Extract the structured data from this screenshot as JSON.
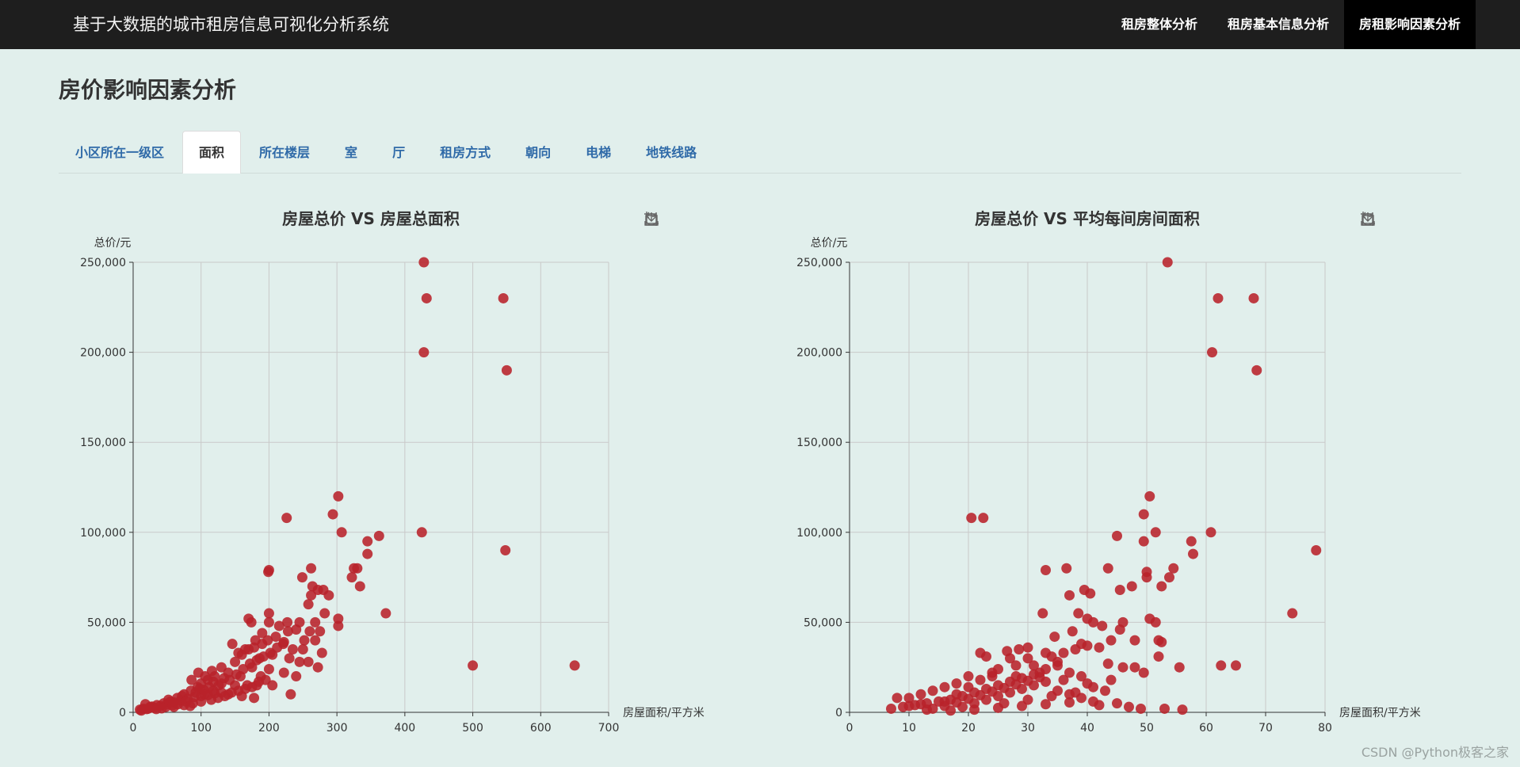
{
  "app": {
    "title": "基于大数据的城市租房信息可视化分析系统"
  },
  "nav": {
    "items": [
      {
        "label": "租房整体分析"
      },
      {
        "label": "租房基本信息分析"
      },
      {
        "label": "房租影响因素分析",
        "active": true
      }
    ]
  },
  "page": {
    "title": "房价影响因素分析"
  },
  "tabs": [
    {
      "label": "小区所在一级区"
    },
    {
      "label": "面积",
      "active": true
    },
    {
      "label": "所在楼层"
    },
    {
      "label": "室"
    },
    {
      "label": "厅"
    },
    {
      "label": "租房方式"
    },
    {
      "label": "朝向"
    },
    {
      "label": "电梯"
    },
    {
      "label": "地铁线路"
    }
  ],
  "toolbox": {
    "icons": [
      "data-zoom-icon",
      "zoom-reset-icon",
      "restore-icon",
      "save-image-icon"
    ]
  },
  "watermark": "CSDN @Python极客之家",
  "colors": {
    "point": "#b8222a",
    "topbar": "#1e1e1e",
    "background": "#e1efec",
    "tab_text": "#2f6aa8"
  },
  "chart_data": [
    {
      "type": "scatter",
      "title": "房屋总价 VS 房屋总面积",
      "xlabel": "房屋面积/平方米",
      "ylabel": "总价/元",
      "xlim": [
        0,
        700
      ],
      "ylim": [
        0,
        250000
      ],
      "xticks": [
        0,
        100,
        200,
        300,
        400,
        500,
        600,
        700
      ],
      "yticks": [
        0,
        50000,
        100000,
        150000,
        200000,
        250000
      ],
      "ytick_labels": [
        "0",
        "50,000",
        "100,000",
        "150,000",
        "200,000",
        "250,000"
      ],
      "grid": true,
      "points": [
        [
          428,
          250000
        ],
        [
          432,
          230000
        ],
        [
          545,
          230000
        ],
        [
          428,
          200000
        ],
        [
          550,
          190000
        ],
        [
          302,
          120000
        ],
        [
          294,
          110000
        ],
        [
          226,
          108000
        ],
        [
          307,
          100000
        ],
        [
          425,
          100000
        ],
        [
          362,
          98000
        ],
        [
          345,
          95000
        ],
        [
          345,
          88000
        ],
        [
          548,
          90000
        ],
        [
          325,
          80000
        ],
        [
          330,
          80000
        ],
        [
          262,
          80000
        ],
        [
          200,
          79000
        ],
        [
          199,
          78000
        ],
        [
          322,
          75000
        ],
        [
          249,
          75000
        ],
        [
          334,
          70000
        ],
        [
          264,
          70000
        ],
        [
          272,
          68000
        ],
        [
          280,
          68000
        ],
        [
          288,
          65000
        ],
        [
          262,
          65000
        ],
        [
          258,
          60000
        ],
        [
          372,
          55000
        ],
        [
          282,
          55000
        ],
        [
          200,
          55000
        ],
        [
          302,
          52000
        ],
        [
          170,
          52000
        ],
        [
          174,
          50000
        ],
        [
          200,
          50000
        ],
        [
          227,
          50000
        ],
        [
          245,
          50000
        ],
        [
          268,
          50000
        ],
        [
          302,
          48000
        ],
        [
          215,
          48000
        ],
        [
          240,
          46000
        ],
        [
          260,
          45000
        ],
        [
          275,
          45000
        ],
        [
          228,
          45000
        ],
        [
          190,
          44000
        ],
        [
          210,
          42000
        ],
        [
          252,
          40000
        ],
        [
          268,
          40000
        ],
        [
          198,
          40000
        ],
        [
          180,
          40000
        ],
        [
          146,
          38000
        ],
        [
          221,
          38000
        ],
        [
          235,
          35000
        ],
        [
          250,
          35000
        ],
        [
          278,
          33000
        ],
        [
          170,
          35000
        ],
        [
          160,
          32000
        ],
        [
          205,
          32000
        ],
        [
          186,
          30000
        ],
        [
          230,
          30000
        ],
        [
          245,
          28000
        ],
        [
          258,
          28000
        ],
        [
          272,
          25000
        ],
        [
          500,
          26000
        ],
        [
          650,
          26000
        ],
        [
          150,
          28000
        ],
        [
          130,
          25000
        ],
        [
          175,
          25000
        ],
        [
          200,
          24000
        ],
        [
          222,
          22000
        ],
        [
          240,
          20000
        ],
        [
          188,
          20000
        ],
        [
          158,
          20000
        ],
        [
          140,
          22000
        ],
        [
          120,
          20000
        ],
        [
          110,
          18000
        ],
        [
          100,
          16000
        ],
        [
          130,
          16000
        ],
        [
          150,
          15000
        ],
        [
          168,
          15000
        ],
        [
          182,
          15000
        ],
        [
          205,
          15000
        ],
        [
          232,
          10000
        ],
        [
          95,
          14000
        ],
        [
          85,
          12000
        ],
        [
          75,
          10000
        ],
        [
          105,
          10000
        ],
        [
          118,
          12000
        ],
        [
          140,
          10000
        ],
        [
          160,
          9000
        ],
        [
          178,
          8000
        ],
        [
          65,
          8000
        ],
        [
          55,
          6000
        ],
        [
          45,
          5000
        ],
        [
          35,
          4000
        ],
        [
          25,
          3000
        ],
        [
          15,
          2000
        ],
        [
          10,
          1500
        ],
        [
          20,
          1800
        ],
        [
          30,
          2500
        ],
        [
          40,
          3500
        ],
        [
          50,
          4500
        ],
        [
          60,
          5500
        ],
        [
          70,
          6500
        ],
        [
          80,
          7500
        ],
        [
          90,
          8500
        ],
        [
          100,
          9000
        ],
        [
          110,
          9500
        ],
        [
          120,
          10500
        ],
        [
          130,
          11000
        ],
        [
          60,
          3000
        ],
        [
          75,
          4000
        ],
        [
          88,
          5000
        ],
        [
          100,
          6000
        ],
        [
          115,
          7000
        ],
        [
          125,
          8000
        ],
        [
          135,
          9000
        ],
        [
          145,
          11000
        ],
        [
          155,
          12000
        ],
        [
          165,
          13000
        ],
        [
          175,
          14000
        ],
        [
          185,
          17000
        ],
        [
          195,
          18000
        ],
        [
          18,
          4500
        ],
        [
          12,
          1000
        ],
        [
          22,
          2000
        ],
        [
          28,
          3200
        ],
        [
          34,
          1800
        ],
        [
          42,
          2200
        ],
        [
          48,
          3000
        ],
        [
          52,
          7000
        ],
        [
          58,
          4000
        ],
        [
          66,
          4500
        ],
        [
          72,
          9000
        ],
        [
          78,
          6000
        ],
        [
          84,
          3500
        ],
        [
          92,
          11000
        ],
        [
          98,
          13000
        ],
        [
          104,
          12500
        ],
        [
          112,
          14000
        ],
        [
          118,
          17000
        ],
        [
          126,
          15000
        ],
        [
          134,
          19000
        ],
        [
          142,
          18000
        ],
        [
          152,
          21000
        ],
        [
          162,
          24000
        ],
        [
          172,
          27000
        ],
        [
          182,
          29000
        ],
        [
          192,
          31000
        ],
        [
          202,
          33000
        ],
        [
          212,
          36000
        ],
        [
          222,
          39000
        ],
        [
          155,
          33000
        ],
        [
          165,
          35000
        ],
        [
          178,
          36000
        ],
        [
          190,
          38000
        ],
        [
          96,
          22000
        ],
        [
          106,
          20000
        ],
        [
          116,
          23000
        ],
        [
          86,
          18000
        ]
      ]
    },
    {
      "type": "scatter",
      "title": "房屋总价 VS 平均每间房间面积",
      "xlabel": "房屋面积/平方米",
      "ylabel": "总价/元",
      "xlim": [
        0,
        80
      ],
      "ylim": [
        0,
        250000
      ],
      "xticks": [
        0,
        10,
        20,
        30,
        40,
        50,
        60,
        70,
        80
      ],
      "yticks": [
        0,
        50000,
        100000,
        150000,
        200000,
        250000
      ],
      "ytick_labels": [
        "0",
        "50,000",
        "100,000",
        "150,000",
        "200,000",
        "250,000"
      ],
      "grid": true,
      "points": [
        [
          53.5,
          250000
        ],
        [
          62,
          230000
        ],
        [
          68,
          230000
        ],
        [
          61,
          200000
        ],
        [
          68.5,
          190000
        ],
        [
          50.5,
          120000
        ],
        [
          49.5,
          110000
        ],
        [
          20.5,
          108000
        ],
        [
          22.5,
          108000
        ],
        [
          51.5,
          100000
        ],
        [
          60.8,
          100000
        ],
        [
          57.5,
          95000
        ],
        [
          45,
          98000
        ],
        [
          49.5,
          95000
        ],
        [
          78.5,
          90000
        ],
        [
          57.8,
          88000
        ],
        [
          33,
          79000
        ],
        [
          36.5,
          80000
        ],
        [
          43.5,
          80000
        ],
        [
          54.5,
          80000
        ],
        [
          50,
          78000
        ],
        [
          50,
          75000
        ],
        [
          53.8,
          75000
        ],
        [
          47.5,
          70000
        ],
        [
          52.5,
          70000
        ],
        [
          45.5,
          68000
        ],
        [
          39.5,
          68000
        ],
        [
          40.5,
          66000
        ],
        [
          37,
          65000
        ],
        [
          74.5,
          55000
        ],
        [
          32.5,
          55000
        ],
        [
          38.5,
          55000
        ],
        [
          40,
          52000
        ],
        [
          41,
          50000
        ],
        [
          46,
          50000
        ],
        [
          50.5,
          52000
        ],
        [
          51.5,
          50000
        ],
        [
          42.5,
          48000
        ],
        [
          45.5,
          46000
        ],
        [
          37.5,
          45000
        ],
        [
          34.5,
          42000
        ],
        [
          44,
          40000
        ],
        [
          48,
          40000
        ],
        [
          52,
          40000
        ],
        [
          52.5,
          39000
        ],
        [
          39,
          38000
        ],
        [
          42,
          36000
        ],
        [
          30,
          36000
        ],
        [
          26.5,
          34000
        ],
        [
          28.5,
          35000
        ],
        [
          33,
          33000
        ],
        [
          22,
          33000
        ],
        [
          23,
          31000
        ],
        [
          52,
          31000
        ],
        [
          62.5,
          26000
        ],
        [
          65,
          26000
        ],
        [
          55.5,
          25000
        ],
        [
          43.5,
          27000
        ],
        [
          46,
          25000
        ],
        [
          48,
          25000
        ],
        [
          49.5,
          22000
        ],
        [
          35,
          28000
        ],
        [
          31,
          26000
        ],
        [
          27,
          30000
        ],
        [
          25,
          24000
        ],
        [
          20,
          20000
        ],
        [
          24,
          20000
        ],
        [
          28,
          20000
        ],
        [
          32,
          22000
        ],
        [
          36,
          18000
        ],
        [
          40,
          16000
        ],
        [
          44,
          18000
        ],
        [
          18,
          16000
        ],
        [
          16,
          14000
        ],
        [
          14,
          12000
        ],
        [
          12,
          10000
        ],
        [
          10,
          8000
        ],
        [
          8,
          8000
        ],
        [
          7,
          2000
        ],
        [
          9,
          3000
        ],
        [
          11,
          4000
        ],
        [
          13,
          5000
        ],
        [
          15,
          6000
        ],
        [
          17,
          7000
        ],
        [
          19,
          9000
        ],
        [
          21,
          11000
        ],
        [
          23,
          13000
        ],
        [
          25,
          15000
        ],
        [
          27,
          17000
        ],
        [
          29,
          19000
        ],
        [
          31,
          21000
        ],
        [
          33,
          24000
        ],
        [
          35,
          26000
        ],
        [
          37,
          22000
        ],
        [
          39,
          20000
        ],
        [
          41,
          14000
        ],
        [
          43,
          12000
        ],
        [
          45,
          5000
        ],
        [
          47,
          3000
        ],
        [
          49,
          2000
        ],
        [
          53,
          2000
        ],
        [
          56,
          1500
        ],
        [
          26,
          5000
        ],
        [
          30,
          7000
        ],
        [
          34,
          9000
        ],
        [
          38,
          11000
        ],
        [
          42,
          4000
        ],
        [
          19,
          3000
        ],
        [
          21,
          5000
        ],
        [
          23,
          7000
        ],
        [
          25,
          9000
        ],
        [
          27,
          11000
        ],
        [
          29,
          13000
        ],
        [
          31,
          15000
        ],
        [
          33,
          17000
        ],
        [
          35,
          12000
        ],
        [
          37,
          10000
        ],
        [
          39,
          8000
        ],
        [
          41,
          6000
        ],
        [
          14,
          2000
        ],
        [
          16,
          3500
        ],
        [
          18,
          5500
        ],
        [
          20,
          7500
        ],
        [
          22,
          9500
        ],
        [
          24,
          11500
        ],
        [
          26,
          13500
        ],
        [
          28,
          15500
        ],
        [
          30,
          17500
        ],
        [
          32,
          19500
        ],
        [
          34,
          31000
        ],
        [
          36,
          33000
        ],
        [
          38,
          35000
        ],
        [
          40,
          37000
        ],
        [
          30,
          30000
        ],
        [
          28,
          26000
        ],
        [
          24,
          22000
        ],
        [
          22,
          18000
        ],
        [
          20,
          14000
        ],
        [
          18,
          10000
        ],
        [
          16,
          6000
        ],
        [
          12,
          4500
        ],
        [
          10,
          3500
        ],
        [
          13,
          1500
        ],
        [
          17,
          1000
        ],
        [
          21,
          1500
        ],
        [
          25,
          2500
        ],
        [
          29,
          3500
        ],
        [
          33,
          4500
        ],
        [
          37,
          5500
        ]
      ]
    }
  ]
}
